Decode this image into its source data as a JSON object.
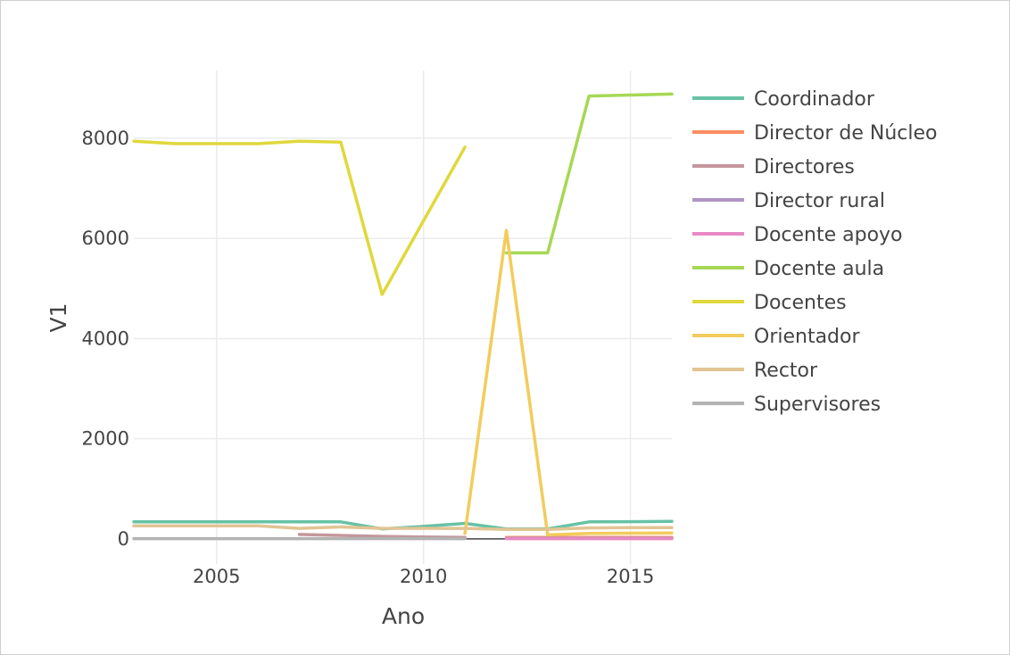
{
  "chart_data": {
    "type": "line",
    "title": "",
    "xlabel": "Ano",
    "ylabel": "V1",
    "xlim": [
      2003,
      2016
    ],
    "ylim": [
      -500,
      9350
    ],
    "grid": true,
    "legend_position": "right",
    "x_ticks": [
      2005,
      2010,
      2015
    ],
    "y_ticks": [
      0,
      2000,
      4000,
      6000,
      8000
    ],
    "series": [
      {
        "name": "Coordinador",
        "color": "#66c2a5",
        "x": [
          2003,
          2004,
          2005,
          2006,
          2007,
          2008,
          2009,
          2010,
          2011,
          2012,
          2013,
          2014,
          2015,
          2016
        ],
        "y": [
          340,
          340,
          340,
          340,
          340,
          340,
          200,
          250,
          310,
          200,
          200,
          340,
          345,
          350
        ]
      },
      {
        "name": "Director de Núcleo",
        "color": "#fc8d62",
        "x": [
          2012,
          2013,
          2014,
          2015,
          2016
        ],
        "y": [
          30,
          30,
          30,
          30,
          30
        ]
      },
      {
        "name": "Directores",
        "color": "#c4979c",
        "x": [
          2007,
          2008,
          2009,
          2010,
          2011
        ],
        "y": [
          90,
          70,
          50,
          40,
          30
        ]
      },
      {
        "name": "Director rural",
        "color": "#b095c3",
        "x": [
          2012,
          2013,
          2014,
          2015,
          2016
        ],
        "y": [
          15,
          15,
          15,
          15,
          15
        ]
      },
      {
        "name": "Docente apoyo",
        "color": "#e78ac3",
        "x": [
          2012,
          2013,
          2014,
          2015,
          2016
        ],
        "y": [
          5,
          5,
          5,
          5,
          5
        ]
      },
      {
        "name": "Docente aula",
        "color": "#a6d854",
        "x": [
          2012,
          2013,
          2014,
          2015,
          2016
        ],
        "y": [
          5710,
          5710,
          8840,
          8860,
          8880
        ]
      },
      {
        "name": "Docentes",
        "color": "#e0d83c",
        "x": [
          2003,
          2004,
          2005,
          2006,
          2007,
          2008,
          2009,
          2010,
          2011
        ],
        "y": [
          7940,
          7890,
          7890,
          7890,
          7940,
          7920,
          4880,
          6350,
          7820
        ]
      },
      {
        "name": "Orientador",
        "color": "#f2cc5c",
        "x": [
          2011,
          2012,
          2013,
          2014,
          2015,
          2016
        ],
        "y": [
          110,
          6160,
          80,
          110,
          115,
          120
        ]
      },
      {
        "name": "Rector",
        "color": "#e2c494",
        "x": [
          2003,
          2004,
          2005,
          2006,
          2007,
          2008,
          2009,
          2010,
          2011,
          2012,
          2013,
          2014,
          2015,
          2016
        ],
        "y": [
          260,
          260,
          260,
          260,
          210,
          240,
          210,
          210,
          210,
          190,
          190,
          220,
          225,
          225
        ]
      },
      {
        "name": "Supervisores",
        "color": "#b3b3b3",
        "x": [
          2003,
          2004,
          2005,
          2006,
          2007,
          2008,
          2009,
          2010,
          2011
        ],
        "y": [
          5,
          5,
          5,
          5,
          5,
          5,
          5,
          5,
          5
        ]
      }
    ]
  }
}
